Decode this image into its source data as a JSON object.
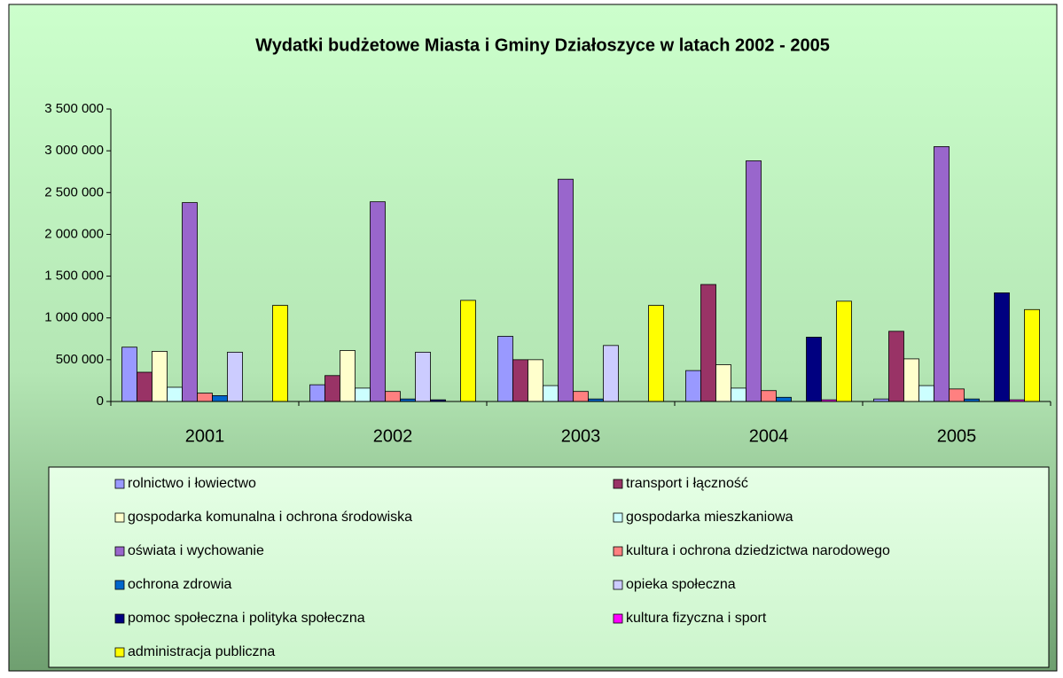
{
  "chart_data": {
    "type": "bar",
    "title": "Wydatki budżetowe Miasta i Gminy Działoszyce w latach 2002 - 2005",
    "categories": [
      "2001",
      "2002",
      "2003",
      "2004",
      "2005"
    ],
    "series": [
      {
        "name": "rolnictwo i łowiectwo",
        "color": "#9999ff",
        "values": [
          650000,
          200000,
          780000,
          370000,
          30000
        ]
      },
      {
        "name": "transport i łączność",
        "color": "#993366",
        "values": [
          350000,
          310000,
          500000,
          1400000,
          840000
        ]
      },
      {
        "name": "gospodarka komunalna i ochrona środowiska",
        "color": "#ffffcc",
        "values": [
          600000,
          610000,
          500000,
          440000,
          510000
        ]
      },
      {
        "name": "gospodarka mieszkaniowa",
        "color": "#ccffff",
        "values": [
          170000,
          160000,
          190000,
          160000,
          190000
        ]
      },
      {
        "name": "oświata i wychowanie",
        "color": "#9966cc",
        "values": [
          2380000,
          2390000,
          2660000,
          2880000,
          3050000
        ]
      },
      {
        "name": "kultura i ochrona dziedzictwa narodowego",
        "color": "#ff8080",
        "values": [
          100000,
          120000,
          120000,
          130000,
          150000
        ]
      },
      {
        "name": "ochrona zdrowia",
        "color": "#0066cc",
        "values": [
          70000,
          30000,
          30000,
          50000,
          30000
        ]
      },
      {
        "name": "opieka społeczna",
        "color": "#ccccff",
        "values": [
          590000,
          590000,
          670000,
          0,
          0
        ]
      },
      {
        "name": "pomoc społeczna i polityka społeczna",
        "color": "#000080",
        "values": [
          0,
          20000,
          0,
          770000,
          1300000
        ]
      },
      {
        "name": "kultura fizyczna i sport",
        "color": "#ff00ff",
        "values": [
          0,
          0,
          0,
          20000,
          20000
        ]
      },
      {
        "name": "administracja publiczna",
        "color": "#ffff00",
        "values": [
          1150000,
          1210000,
          1150000,
          1200000,
          1100000
        ]
      }
    ],
    "ylim": [
      0,
      3500000
    ],
    "yticks": [
      0,
      {
        "value": 500000,
        "label": "500 000"
      },
      {
        "value": 1000000,
        "label": "1 000 000"
      },
      {
        "value": 1500000,
        "label": "1 500 000"
      },
      {
        "value": 2000000,
        "label": "2 000 000"
      },
      {
        "value": 2500000,
        "label": "2 500 000"
      },
      {
        "value": 3000000,
        "label": "3 000 000"
      },
      {
        "value": 3500000,
        "label": "3 500 000"
      }
    ],
    "grid": false,
    "legend": "bottom"
  }
}
